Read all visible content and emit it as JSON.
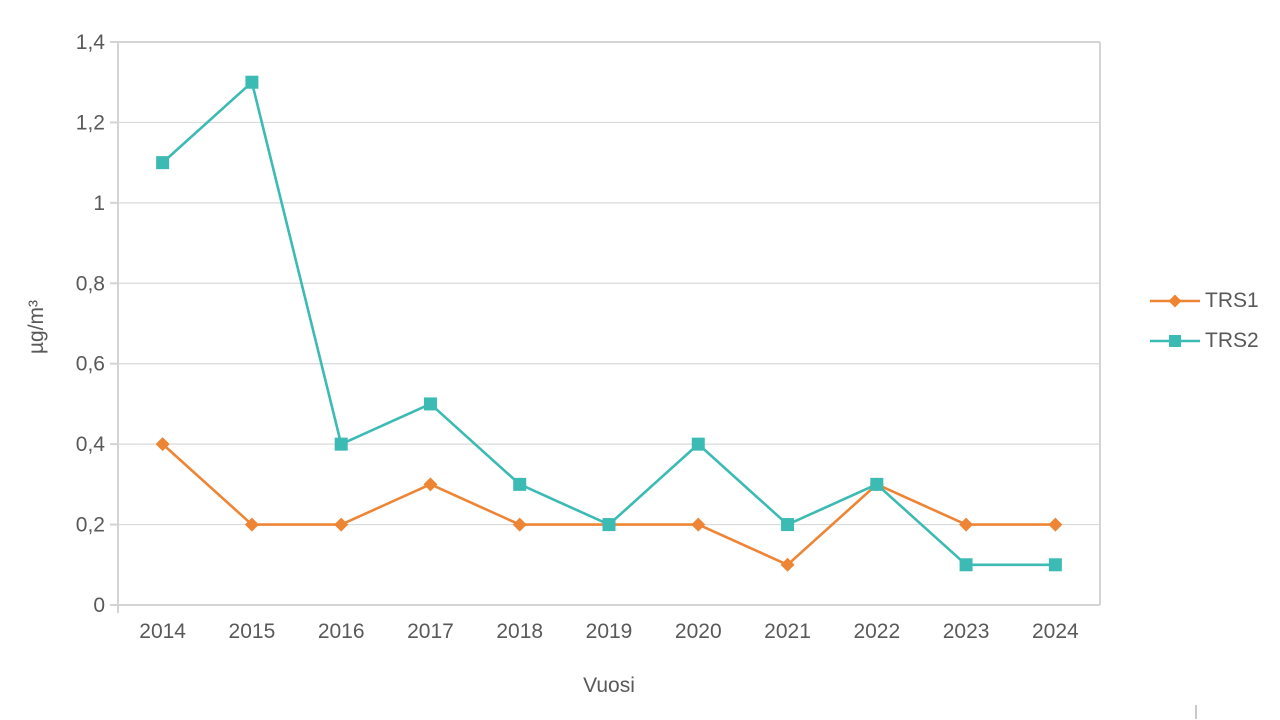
{
  "chart_data": {
    "type": "line",
    "title": "",
    "xlabel": "Vuosi",
    "ylabel": "µg/m³",
    "categories": [
      "2014",
      "2015",
      "2016",
      "2017",
      "2018",
      "2019",
      "2020",
      "2021",
      "2022",
      "2023",
      "2024"
    ],
    "series": [
      {
        "name": "TRS1",
        "color": "#EE8535",
        "marker": "diamond",
        "values": [
          0.4,
          0.2,
          0.2,
          0.3,
          0.2,
          0.2,
          0.2,
          0.1,
          0.3,
          0.2,
          0.2
        ]
      },
      {
        "name": "TRS2",
        "color": "#3BBBB3",
        "marker": "square",
        "values": [
          1.1,
          1.3,
          0.4,
          0.5,
          0.3,
          0.2,
          0.4,
          0.2,
          0.3,
          0.1,
          0.1
        ]
      }
    ],
    "ylim": [
      0,
      1.4
    ],
    "y_ticks": {
      "values": [
        0,
        0.2,
        0.4,
        0.6,
        0.8,
        1,
        1.2,
        1.4
      ],
      "labels": [
        "0",
        "0,2",
        "0,4",
        "0,6",
        "0,8",
        "1",
        "1,2",
        "1,4"
      ]
    },
    "grid": true,
    "legend_position": "right",
    "colors": {
      "grid": "#DADADA",
      "axis": "#D4D4D4",
      "text": "#595959"
    }
  }
}
